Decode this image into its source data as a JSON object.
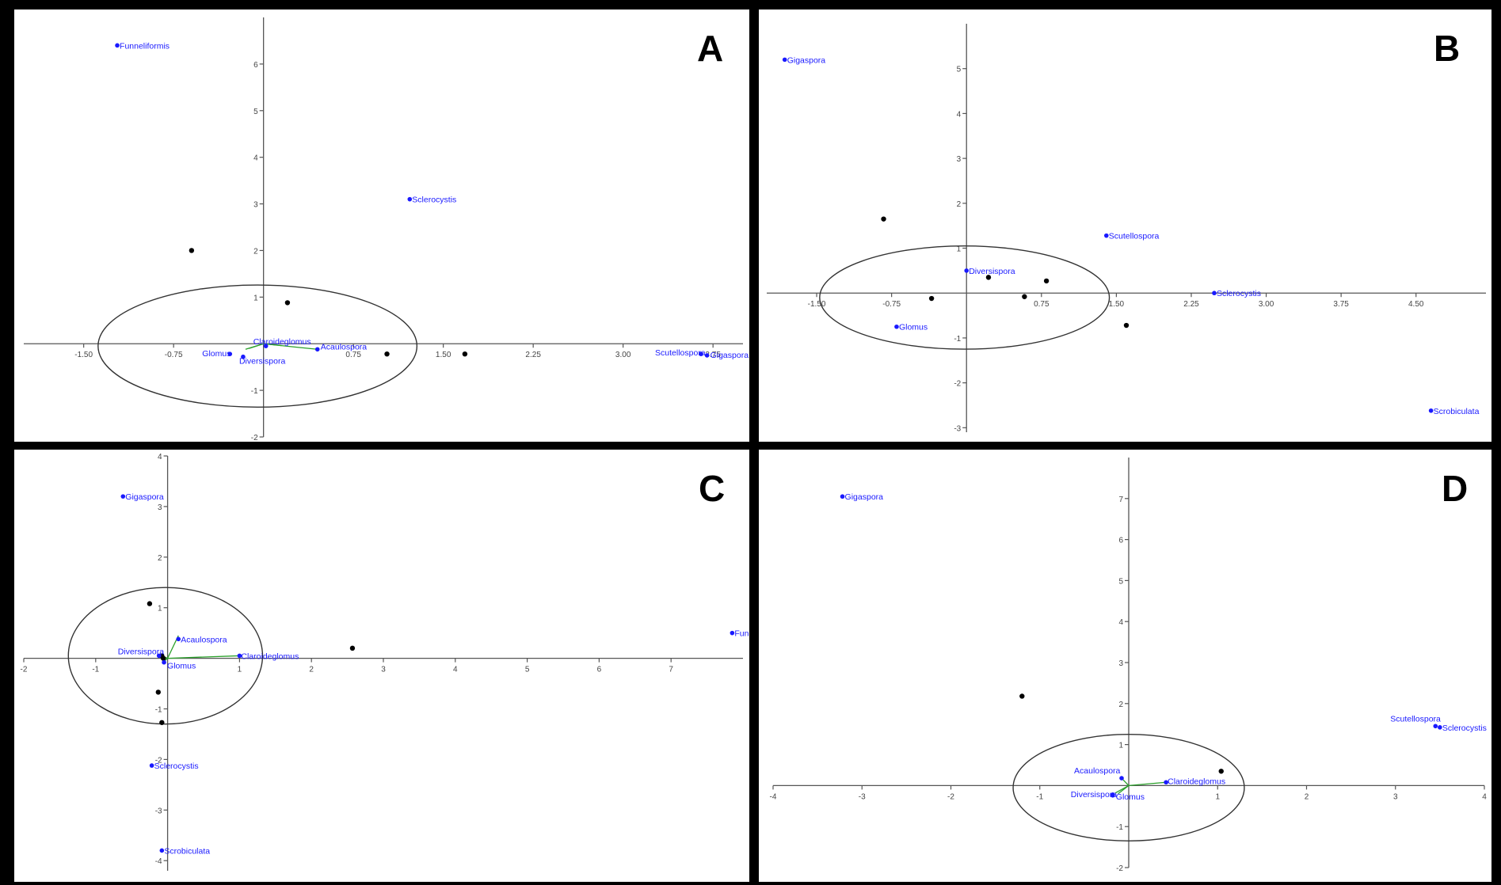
{
  "chart_data": [
    {
      "panel": "A",
      "type": "scatter",
      "xlim": [
        -2.0,
        4.0
      ],
      "ylim": [
        -2.0,
        7.0
      ],
      "x_ticks": [
        -1.5,
        -0.75,
        0.75,
        1.5,
        2.25,
        3.0,
        3.75
      ],
      "x_tick_labels": [
        "-1.50",
        "-0.75",
        "0.75",
        "1.50",
        "2.25",
        "3.00",
        "3.75"
      ],
      "y_ticks": [
        -2,
        -1,
        1,
        2,
        3,
        4,
        5,
        6
      ],
      "y_tick_labels": [
        "-2",
        "-1",
        "1",
        "2",
        "3",
        "4",
        "5",
        "6"
      ],
      "taxa": [
        {
          "name": "Funneliformis",
          "x": -1.22,
          "y": 6.4
        },
        {
          "name": "Sclerocystis",
          "x": 1.22,
          "y": 3.1
        },
        {
          "name": "Glomus",
          "x": -0.28,
          "y": -0.22
        },
        {
          "name": "Claroideglomus",
          "x": 0.02,
          "y": -0.05
        },
        {
          "name": "Diversispora",
          "x": -0.17,
          "y": -0.28
        },
        {
          "name": "Acaulospora",
          "x": 0.45,
          "y": -0.12
        },
        {
          "name": "Scutellospora",
          "x": 3.65,
          "y": -0.22
        },
        {
          "name": "Gigaspora",
          "x": 3.7,
          "y": -0.25
        }
      ],
      "samples": [
        {
          "x": -0.6,
          "y": 2.0
        },
        {
          "x": 0.2,
          "y": 0.88
        },
        {
          "x": 1.03,
          "y": -0.22
        },
        {
          "x": 1.68,
          "y": -0.22
        }
      ],
      "vectors": [
        {
          "to": "Glomus",
          "x": -0.12,
          "y": -0.1
        },
        {
          "to": "Claroideglomus",
          "x": 0.15,
          "y": -0.04
        },
        {
          "to": "Acaulospora",
          "x": 0.45,
          "y": -0.12
        },
        {
          "to": "Diversispora",
          "x": -0.15,
          "y": -0.12
        }
      ],
      "ellipse": {
        "cx": -0.05,
        "cy": -0.05,
        "rx": 1.33,
        "ry": 1.31
      }
    },
    {
      "panel": "B",
      "type": "scatter",
      "xlim": [
        -2.0,
        5.2
      ],
      "ylim": [
        -3.1,
        6.0
      ],
      "x_ticks": [
        -1.5,
        -0.75,
        0.75,
        1.5,
        2.25,
        3.0,
        3.75,
        4.5
      ],
      "x_tick_labels": [
        "-1.50",
        "-0.75",
        "0.75",
        "1.50",
        "2.25",
        "3.00",
        "3.75",
        "4.50"
      ],
      "y_ticks": [
        -3,
        -2,
        -1,
        1,
        2,
        3,
        4,
        5
      ],
      "y_tick_labels": [
        "-3",
        "-2",
        "-1",
        "1",
        "2",
        "3",
        "4",
        "5"
      ],
      "taxa": [
        {
          "name": "Gigaspora",
          "x": -1.82,
          "y": 5.2
        },
        {
          "name": "Scutellospora",
          "x": 1.4,
          "y": 1.28
        },
        {
          "name": "Diversispora",
          "x": 0.0,
          "y": 0.5
        },
        {
          "name": "Sclerocystis",
          "x": 2.48,
          "y": 0.0
        },
        {
          "name": "Glomus",
          "x": -0.7,
          "y": -0.75
        },
        {
          "name": "Scrobiculata",
          "x": 4.65,
          "y": -2.62
        }
      ],
      "samples": [
        {
          "x": -0.83,
          "y": 1.65
        },
        {
          "x": -0.35,
          "y": -0.12
        },
        {
          "x": 0.22,
          "y": 0.35
        },
        {
          "x": 0.58,
          "y": -0.08
        },
        {
          "x": 0.8,
          "y": 0.27
        },
        {
          "x": 1.6,
          "y": -0.72
        }
      ],
      "vectors": [],
      "ellipse": {
        "cx": -0.02,
        "cy": -0.1,
        "rx": 1.45,
        "ry": 1.15
      }
    },
    {
      "panel": "C",
      "type": "scatter",
      "xlim": [
        -2.0,
        8.0
      ],
      "ylim": [
        -4.2,
        4.0
      ],
      "x_ticks": [
        -2,
        -1,
        1,
        2,
        3,
        4,
        5,
        6,
        7
      ],
      "x_tick_labels": [
        "-2",
        "-1",
        "1",
        "2",
        "3",
        "4",
        "5",
        "6",
        "7"
      ],
      "y_ticks": [
        -4,
        -3,
        -2,
        -1,
        1,
        2,
        3,
        4
      ],
      "y_tick_labels": [
        "-4",
        "-3",
        "-2",
        "-1",
        "1",
        "2",
        "3",
        "4"
      ],
      "taxa": [
        {
          "name": "Gigaspora",
          "x": -0.62,
          "y": 3.2
        },
        {
          "name": "Funneliformis",
          "x": 7.85,
          "y": 0.5
        },
        {
          "name": "Acaulospora",
          "x": 0.15,
          "y": 0.38
        },
        {
          "name": "Diversispora",
          "x": -0.12,
          "y": 0.05
        },
        {
          "name": "Glomus",
          "x": -0.05,
          "y": -0.08
        },
        {
          "name": "Claroideglomus",
          "x": 1.0,
          "y": 0.05
        },
        {
          "name": "Sclerocystis",
          "x": -0.22,
          "y": -2.12
        },
        {
          "name": "Scrobiculata",
          "x": -0.08,
          "y": -3.8
        }
      ],
      "samples": [
        {
          "x": -0.25,
          "y": 1.08
        },
        {
          "x": -0.08,
          "y": 0.05
        },
        {
          "x": -0.06,
          "y": 0.0
        },
        {
          "x": 2.57,
          "y": 0.2
        },
        {
          "x": -0.13,
          "y": -0.67
        },
        {
          "x": -0.08,
          "y": -1.27
        }
      ],
      "vectors": [
        {
          "to": "Acaulospora",
          "x": 0.15,
          "y": 0.45
        },
        {
          "to": "Claroideglomus",
          "x": 1.0,
          "y": 0.05
        },
        {
          "to": "Diversispora",
          "x": -0.1,
          "y": 0.06
        },
        {
          "to": "Glomus",
          "x": -0.05,
          "y": -0.06
        }
      ],
      "ellipse": {
        "cx": -0.03,
        "cy": 0.05,
        "rx": 1.35,
        "ry": 1.35
      }
    },
    {
      "panel": "D",
      "type": "scatter",
      "xlim": [
        -4.0,
        4.0
      ],
      "ylim": [
        -2.0,
        8.0
      ],
      "x_ticks": [
        -4,
        -3,
        -2,
        -1,
        1,
        2,
        3,
        4
      ],
      "x_tick_labels": [
        "-4",
        "-3",
        "-2",
        "-1",
        "1",
        "2",
        "3",
        "4"
      ],
      "y_ticks": [
        -2,
        -1,
        1,
        2,
        3,
        4,
        5,
        6,
        7
      ],
      "y_tick_labels": [
        "-2",
        "-1",
        "1",
        "2",
        "3",
        "4",
        "5",
        "6",
        "7"
      ],
      "taxa": [
        {
          "name": "Gigaspora",
          "x": -3.22,
          "y": 7.05
        },
        {
          "name": "Scutellospora",
          "x": 3.45,
          "y": 1.45
        },
        {
          "name": "Sclerocystis",
          "x": 3.5,
          "y": 1.42
        },
        {
          "name": "Acaulospora",
          "x": -0.08,
          "y": 0.18
        },
        {
          "name": "Claroideglomus",
          "x": 0.42,
          "y": 0.08
        },
        {
          "name": "Diversispora",
          "x": -0.18,
          "y": -0.22
        },
        {
          "name": "Glomus",
          "x": -0.18,
          "y": -0.24
        }
      ],
      "samples": [
        {
          "x": -1.2,
          "y": 2.18
        },
        {
          "x": 1.04,
          "y": 0.35
        }
      ],
      "vectors": [
        {
          "to": "Acaulospora",
          "x": -0.08,
          "y": 0.18
        },
        {
          "to": "Claroideglomus",
          "x": 0.42,
          "y": 0.08
        },
        {
          "to": "Diversispora",
          "x": -0.15,
          "y": -0.18
        },
        {
          "to": "Glomus",
          "x": -0.12,
          "y": -0.2
        }
      ],
      "ellipse": {
        "cx": 0.0,
        "cy": -0.05,
        "rx": 1.3,
        "ry": 1.3
      }
    }
  ]
}
